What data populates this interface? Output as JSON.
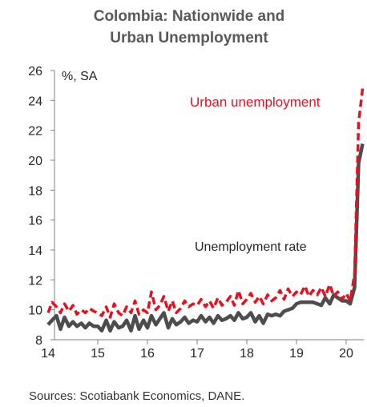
{
  "chart_data": {
    "type": "line",
    "title_lines": [
      "Colombia: Nationwide and",
      "Urban Unemployment"
    ],
    "unit_label": "%, SA",
    "source": "Sources: Scotiabank Economics, DANE.",
    "ylim": [
      8,
      26
    ],
    "yticks": [
      "8",
      "10",
      "12",
      "14",
      "16",
      "18",
      "20",
      "22",
      "24",
      "26"
    ],
    "xlim": [
      2014.0,
      2020.38
    ],
    "xtick_labels": [
      "14",
      "15",
      "16",
      "17",
      "18",
      "19",
      "20"
    ],
    "grid": false,
    "series": [
      {
        "name": "Urban unemployment",
        "color": "#e8101f",
        "style": "dashed",
        "x": [
          2014.0,
          2014.08,
          2014.17,
          2014.25,
          2014.33,
          2014.42,
          2014.5,
          2014.58,
          2014.67,
          2014.75,
          2014.83,
          2014.92,
          2015.0,
          2015.08,
          2015.17,
          2015.25,
          2015.33,
          2015.42,
          2015.5,
          2015.58,
          2015.67,
          2015.75,
          2015.83,
          2015.92,
          2016.0,
          2016.08,
          2016.17,
          2016.25,
          2016.33,
          2016.42,
          2016.5,
          2016.58,
          2016.67,
          2016.75,
          2016.83,
          2016.92,
          2017.0,
          2017.08,
          2017.17,
          2017.25,
          2017.33,
          2017.42,
          2017.5,
          2017.58,
          2017.67,
          2017.75,
          2017.83,
          2017.92,
          2018.0,
          2018.08,
          2018.17,
          2018.25,
          2018.33,
          2018.42,
          2018.5,
          2018.58,
          2018.67,
          2018.75,
          2018.83,
          2018.92,
          2019.0,
          2019.08,
          2019.17,
          2019.25,
          2019.33,
          2019.42,
          2019.5,
          2019.58,
          2019.67,
          2019.75,
          2019.83,
          2019.92,
          2020.0,
          2020.08,
          2020.17,
          2020.25,
          2020.33
        ],
        "values": [
          9.8,
          10.5,
          10.2,
          9.8,
          10.4,
          9.9,
          10.3,
          9.7,
          10.0,
          9.8,
          10.1,
          9.9,
          9.8,
          9.6,
          10.2,
          9.5,
          10.4,
          9.8,
          9.6,
          10.2,
          9.8,
          10.6,
          9.7,
          10.0,
          9.8,
          11.2,
          10.0,
          10.3,
          10.9,
          9.9,
          10.6,
          9.8,
          10.1,
          10.6,
          10.2,
          10.4,
          10.3,
          10.7,
          10.2,
          10.6,
          10.1,
          10.8,
          10.3,
          10.5,
          10.9,
          10.3,
          11.3,
          10.4,
          10.7,
          11.1,
          10.5,
          10.9,
          10.4,
          11.0,
          10.6,
          10.8,
          11.3,
          10.7,
          11.4,
          10.9,
          11.2,
          11.0,
          11.6,
          10.9,
          11.3,
          11.0,
          11.5,
          10.9,
          11.7,
          10.9,
          11.2,
          10.7,
          11.1,
          10.6,
          12.4,
          22.5,
          24.8
        ]
      },
      {
        "name": "Unemployment rate",
        "color": "#4d4d4d",
        "style": "solid",
        "x": [
          2014.0,
          2014.08,
          2014.17,
          2014.25,
          2014.33,
          2014.42,
          2014.5,
          2014.58,
          2014.67,
          2014.75,
          2014.83,
          2014.92,
          2015.0,
          2015.08,
          2015.17,
          2015.25,
          2015.33,
          2015.42,
          2015.5,
          2015.58,
          2015.67,
          2015.75,
          2015.83,
          2015.92,
          2016.0,
          2016.08,
          2016.17,
          2016.25,
          2016.33,
          2016.42,
          2016.5,
          2016.58,
          2016.67,
          2016.75,
          2016.83,
          2016.92,
          2017.0,
          2017.08,
          2017.17,
          2017.25,
          2017.33,
          2017.42,
          2017.5,
          2017.58,
          2017.67,
          2017.75,
          2017.83,
          2017.92,
          2018.0,
          2018.08,
          2018.17,
          2018.25,
          2018.33,
          2018.42,
          2018.5,
          2018.58,
          2018.67,
          2018.75,
          2018.83,
          2018.92,
          2019.0,
          2019.08,
          2019.17,
          2019.25,
          2019.33,
          2019.42,
          2019.5,
          2019.58,
          2019.67,
          2019.75,
          2019.83,
          2019.92,
          2020.0,
          2020.08,
          2020.17,
          2020.25,
          2020.33
        ],
        "values": [
          9.0,
          9.3,
          9.6,
          8.7,
          9.5,
          8.9,
          9.2,
          8.9,
          9.1,
          8.8,
          9.1,
          8.9,
          8.9,
          8.6,
          9.3,
          8.6,
          9.2,
          8.8,
          8.9,
          9.3,
          8.6,
          9.6,
          8.7,
          9.3,
          8.8,
          9.6,
          9.0,
          9.4,
          9.8,
          8.8,
          9.4,
          9.0,
          9.2,
          9.5,
          9.1,
          9.3,
          9.2,
          9.6,
          9.2,
          9.5,
          9.1,
          9.6,
          9.3,
          9.4,
          9.6,
          9.3,
          9.8,
          9.4,
          9.5,
          9.8,
          9.2,
          9.6,
          9.1,
          9.7,
          9.6,
          9.7,
          9.6,
          9.9,
          10.0,
          10.1,
          10.4,
          10.5,
          10.5,
          10.5,
          10.5,
          10.4,
          10.3,
          10.8,
          10.4,
          11.0,
          10.8,
          10.6,
          10.6,
          10.4,
          11.5,
          19.8,
          21.1
        ]
      }
    ]
  }
}
